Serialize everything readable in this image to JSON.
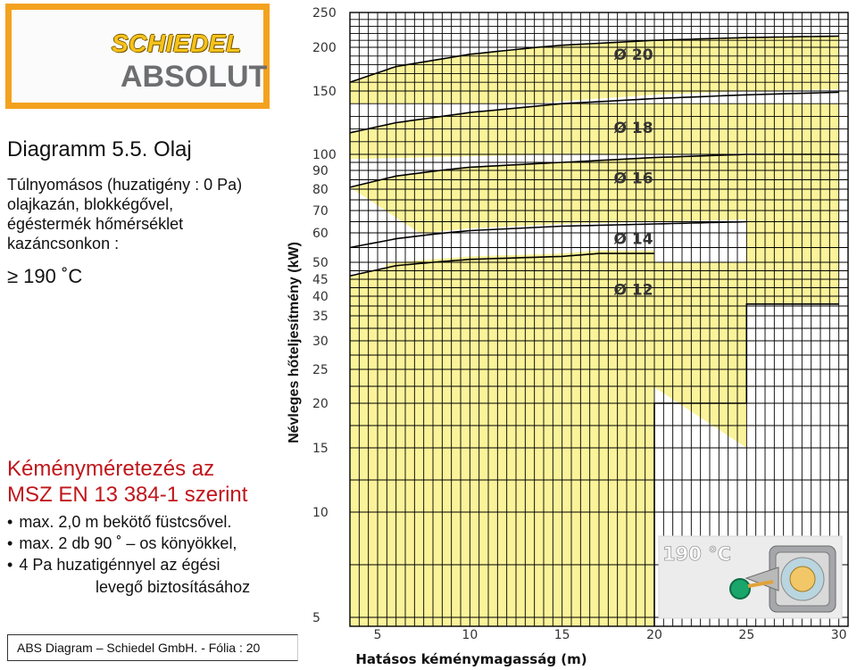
{
  "logo": {
    "top": "SCHIEDEL",
    "bottom": "ABSOLUT"
  },
  "diagram_title": "Diagramm 5.5. Olaj",
  "description_lines": [
    "Túlnyomásos (huzatigény : 0 Pa)",
    "olajkazán, blokkégővel,",
    "égéstermék hőmérséklet",
    "kazáncsonkon :"
  ],
  "temperature_condition": "≥ 190 ˚C",
  "sizing_title_lines": [
    "Kéményméretezés az",
    "MSZ EN 13 384-1 szerint"
  ],
  "bullets": [
    "max. 2,0 m bekötő füstcsővel.",
    "max. 2 db 90 ˚ – os könyökkel,",
    "4 Pa huzatigénnyel az égési"
  ],
  "bullet_continuation": "levegő biztosításához",
  "footer": "ABS Diagram – Schiedel GmbH. - Fólia : 20",
  "badge_text": "190 °C",
  "colors": {
    "band_fill": "#fbf39a",
    "grid": "#000000",
    "logo_frame": "#f3a21f",
    "sizing_text": "#c0161b"
  },
  "icons": [
    "boiler-flue-icon"
  ],
  "chart_data": {
    "type": "area",
    "xlabel": "Hatásos kéménymagasság (m)",
    "ylabel": "Névleges hőteljesítmény (kW)",
    "x_ticks": [
      5,
      10,
      15,
      20,
      25,
      30
    ],
    "y_ticks": [
      5,
      10,
      15,
      20,
      25,
      30,
      35,
      40,
      45,
      50,
      60,
      70,
      80,
      90,
      100,
      150,
      200,
      250
    ],
    "xlim": [
      3.5,
      30.5
    ],
    "ylim": [
      4.5,
      250
    ],
    "grid": true,
    "series": [
      {
        "name": "Ø 20",
        "min_height": 3.5,
        "upper": [
          [
            3.5,
            160
          ],
          [
            6,
            178
          ],
          [
            10,
            192
          ],
          [
            15,
            203
          ],
          [
            20,
            210
          ],
          [
            25,
            214
          ],
          [
            30,
            216
          ]
        ],
        "lower": [
          [
            3.5,
            140
          ],
          [
            30,
            140
          ]
        ]
      },
      {
        "name": "Ø 18",
        "min_height": 3.5,
        "upper": [
          [
            3.5,
            117
          ],
          [
            6,
            125
          ],
          [
            10,
            133
          ],
          [
            15,
            140
          ],
          [
            20,
            144
          ],
          [
            25,
            147
          ],
          [
            30,
            149
          ]
        ],
        "lower": [
          [
            3.5,
            97
          ],
          [
            15,
            100
          ],
          [
            20,
            100
          ],
          [
            30,
            100
          ]
        ]
      },
      {
        "name": "Ø 16",
        "min_height": 3.5,
        "upper": [
          [
            3.5,
            81
          ],
          [
            6,
            87
          ],
          [
            10,
            92
          ],
          [
            15,
            95
          ],
          [
            20,
            98
          ],
          [
            25,
            100
          ],
          [
            30,
            100
          ]
        ],
        "lower": [
          [
            25,
            15
          ],
          [
            25,
            38
          ],
          [
            30,
            38
          ]
        ]
      },
      {
        "name": "Ø 14",
        "min_height": 3.5,
        "upper": [
          [
            3.5,
            55
          ],
          [
            6,
            58
          ],
          [
            10,
            61
          ],
          [
            15,
            63
          ],
          [
            20,
            64
          ],
          [
            25,
            65
          ]
        ],
        "lower": [
          [
            20,
            20
          ],
          [
            20,
            50
          ],
          [
            25,
            50
          ]
        ]
      },
      {
        "name": "Ø 12",
        "min_height": 3.5,
        "upper": [
          [
            3.5,
            46
          ],
          [
            6,
            49
          ],
          [
            10,
            51
          ],
          [
            15,
            52
          ],
          [
            17,
            53
          ],
          [
            20,
            53
          ]
        ],
        "lower": [
          [
            3.5,
            4.5
          ],
          [
            20,
            4.5
          ]
        ]
      }
    ],
    "lower_limit_outline": [
      [
        20,
        4.5
      ],
      [
        20,
        20
      ],
      [
        25,
        20
      ],
      [
        25,
        38
      ],
      [
        30,
        38
      ]
    ]
  }
}
